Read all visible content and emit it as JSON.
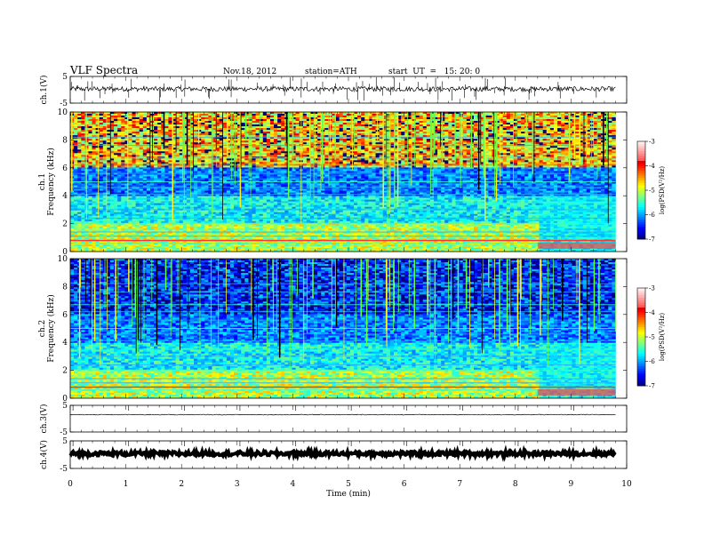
{
  "header": {
    "title": "VLF Spectra",
    "date": "Nov.18, 2012",
    "station": "station=ATH",
    "start": "start  UT  =   15: 20: 0"
  },
  "chart_data": {
    "type": "heatmap",
    "title": "VLF Spectra",
    "xlabel": "Time (min)",
    "xlim": [
      0,
      10
    ],
    "x_ticks": [
      "0",
      "1",
      "2",
      "3",
      "4",
      "5",
      "6",
      "7",
      "8",
      "9",
      "10"
    ],
    "data_end_min": 9.8,
    "panels": [
      {
        "kind": "waveform",
        "ylabel": "ch.1(V)",
        "ylim": [
          -5,
          5
        ],
        "y_ticks": [
          "5",
          "-5"
        ],
        "baseline": 0.3,
        "noise": 0.3,
        "spikes": true
      },
      {
        "kind": "spectrogram",
        "ylabel": "ch.1\nFrequency (kHz)",
        "ylabel_lines": [
          "ch.1",
          "Frequency (kHz)"
        ],
        "ylim": [
          0,
          10
        ],
        "y_ticks": [
          "0",
          "2",
          "4",
          "6",
          "8",
          "10"
        ],
        "colorbar": {
          "label": "log(PSD(V²/Hz)",
          "range": [
            -7,
            -3
          ],
          "ticks": [
            "-3",
            "-4",
            "-5",
            "-6",
            "-7"
          ]
        }
      },
      {
        "kind": "spectrogram",
        "ylabel_lines": [
          "ch.2",
          "Frequency (kHz)"
        ],
        "ylim": [
          0,
          10
        ],
        "y_ticks": [
          "0",
          "2",
          "4",
          "6",
          "8",
          "10"
        ],
        "colorbar": {
          "label": "log(PSD(V²/Hz)",
          "range": [
            -7,
            -3
          ],
          "ticks": [
            "-3",
            "-4",
            "-5",
            "-6",
            "-7"
          ]
        }
      },
      {
        "kind": "waveform",
        "ylabel": "ch.3(V)",
        "ylim": [
          -5,
          5
        ],
        "y_ticks": [
          "5",
          "-5"
        ],
        "baseline": 1.5,
        "noise": 0.05,
        "spikes": false
      },
      {
        "kind": "waveform",
        "ylabel": "ch.4(V)",
        "ylim": [
          -5,
          5
        ],
        "y_ticks": [
          "5",
          "-5"
        ],
        "baseline": 0.4,
        "noise": 0.25,
        "spikes": false,
        "thick": true
      }
    ]
  }
}
